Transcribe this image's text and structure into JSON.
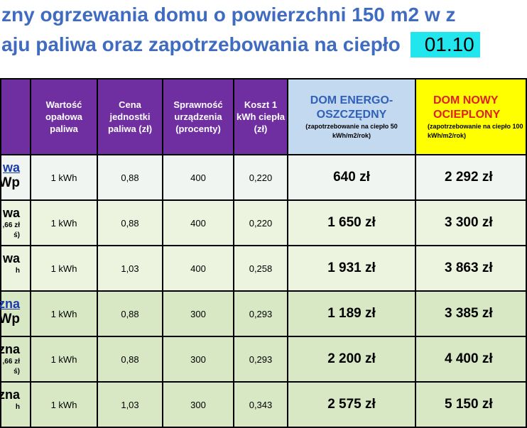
{
  "title": {
    "line1": "zny ogrzewania domu o powierzchni 150 m2 w z",
    "line2": "aju paliwa oraz zapotrzebowania na ciepło",
    "date": "01.10"
  },
  "headers": {
    "wartosc": "Wartość opałowa paliwa",
    "cena": "Cena jednostki paliwa (zł)",
    "sprawnosc": "Sprawność urządzenia (procenty)",
    "koszt": "Koszt 1 kWh ciepła (zł)",
    "energo_title": "DOM ENERGO-OSZCZĘDNY",
    "energo_note": "(zapotrzebowanie na ciepło 50 kWh/m2/rok)",
    "nowy_title": "DOM NOWY OCIEPLONY",
    "nowy_note": "(zapotrzebowanie na ciepło 100 kWh/m2/rok)"
  },
  "rows": [
    {
      "name_top": "wa",
      "name_top_link": true,
      "name_mid": "Wp",
      "name_small1": "",
      "name_small2": "",
      "wartosc": "1 kWh",
      "cena": "0,88",
      "sprawnosc": "400",
      "koszt": "0,220",
      "energo": "640 zł",
      "nowy": "2 292 zł"
    },
    {
      "name_top": "wa",
      "name_top_link": false,
      "name_mid": "",
      "name_small1": ",66 zł",
      "name_small2": "ś)",
      "wartosc": "1 kWh",
      "cena": "0,88",
      "sprawnosc": "400",
      "koszt": "0,220",
      "energo": "1 650 zł",
      "nowy": "3 300 zł"
    },
    {
      "name_top": "wa",
      "name_top_link": false,
      "name_mid": "",
      "name_small1": "h",
      "name_small2": "",
      "wartosc": "1 kWh",
      "cena": "1,03",
      "sprawnosc": "400",
      "koszt": "0,258",
      "energo": "1 931 zł",
      "nowy": "3 863 zł"
    },
    {
      "name_top": "zna",
      "name_top_link": true,
      "name_mid": "Wp",
      "name_small1": "",
      "name_small2": "",
      "wartosc": "1 kWh",
      "cena": "0,88",
      "sprawnosc": "300",
      "koszt": "0,293",
      "energo": "1 189 zł",
      "nowy": "3 385 zł"
    },
    {
      "name_top": "zna",
      "name_top_link": false,
      "name_mid": "",
      "name_small1": ",66 zł",
      "name_small2": "ś)",
      "wartosc": "1 kWh",
      "cena": "0,88",
      "sprawnosc": "300",
      "koszt": "0,293",
      "energo": "2 200 zł",
      "nowy": "4 400 zł"
    },
    {
      "name_top": "zna",
      "name_top_link": false,
      "name_mid": "",
      "name_small1": "h",
      "name_small2": "",
      "wartosc": "1 kWh",
      "cena": "1,03",
      "sprawnosc": "300",
      "koszt": "0,343",
      "energo": "2 575 zł",
      "nowy": "5 150 zł"
    }
  ],
  "colors": {
    "title": "#3f6cc0",
    "date_highlight": "#22e6ee",
    "header_purple": "#6f2fa0",
    "energo_header": "#c3d9ef",
    "nowy_header": "#ffff00"
  }
}
